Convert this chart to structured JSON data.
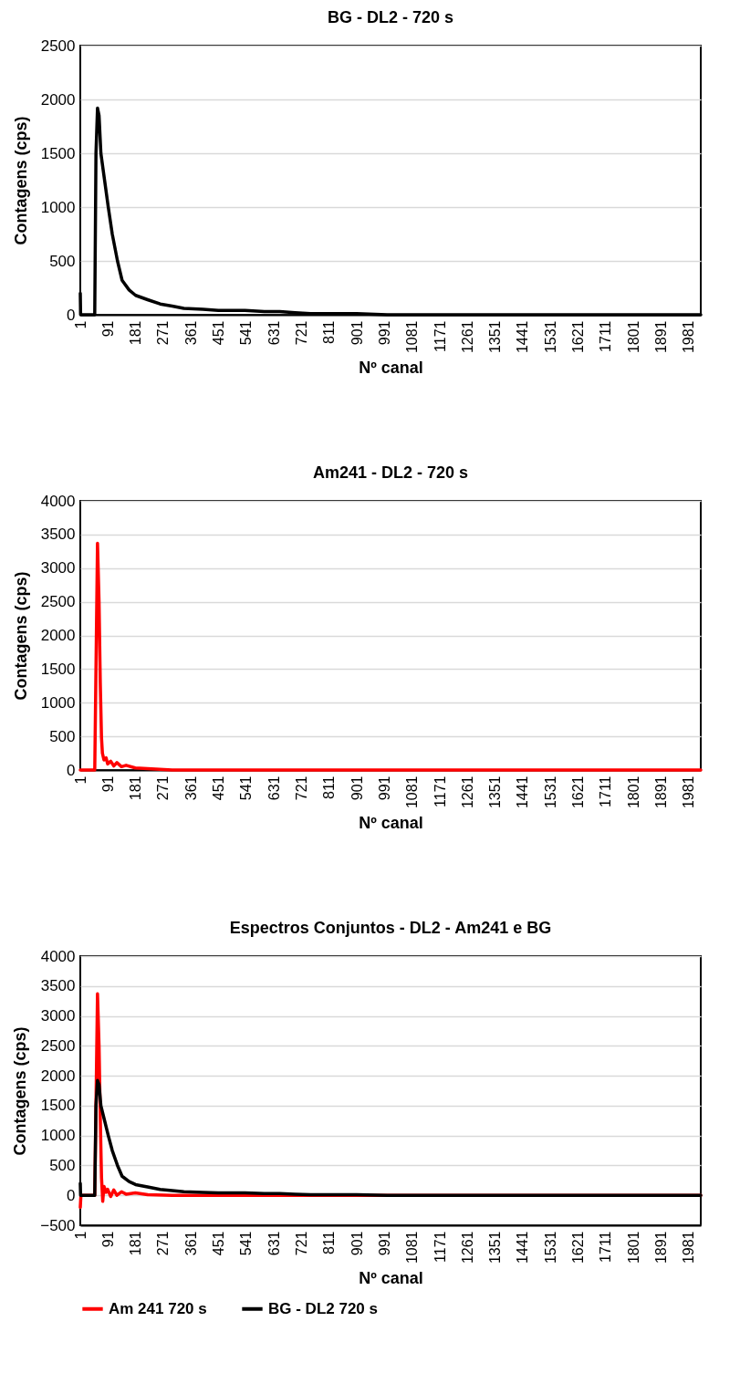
{
  "chart_data": [
    {
      "type": "line",
      "title": "BG - DL2 - 720 s",
      "xlabel": "Nº canal",
      "ylabel": "Contagens (cps)",
      "xlim": [
        1,
        2020
      ],
      "xticks": [
        1,
        91,
        181,
        271,
        361,
        451,
        541,
        631,
        721,
        811,
        901,
        991,
        1081,
        1171,
        1261,
        1351,
        1441,
        1531,
        1621,
        1711,
        1801,
        1891,
        1981
      ],
      "ylim": [
        0,
        2500
      ],
      "yticks": [
        0,
        500,
        1000,
        1500,
        2000,
        2500
      ],
      "grid": "y",
      "series": [
        {
          "color": "#000000",
          "x": [
            1,
            2,
            48,
            52,
            57,
            62,
            68,
            80,
            92,
            105,
            122,
            137,
            160,
            181,
            220,
            261,
            300,
            338,
            400,
            450,
            537,
            600,
            650,
            700,
            750,
            800,
            900,
            1000,
            1500,
            2020
          ],
          "values": [
            200,
            0,
            0,
            1500,
            1920,
            1850,
            1500,
            1250,
            1000,
            750,
            500,
            320,
            230,
            180,
            140,
            100,
            80,
            60,
            50,
            40,
            40,
            30,
            30,
            20,
            10,
            10,
            10,
            0,
            0,
            0
          ]
        }
      ]
    },
    {
      "type": "line",
      "title": "Am241 - DL2 - 720 s",
      "xlabel": "Nº canal",
      "ylabel": "Contagens (cps)",
      "xlim": [
        1,
        2020
      ],
      "xticks": [
        1,
        91,
        181,
        271,
        361,
        451,
        541,
        631,
        721,
        811,
        901,
        991,
        1081,
        1171,
        1261,
        1351,
        1441,
        1531,
        1621,
        1711,
        1801,
        1891,
        1981
      ],
      "ylim": [
        0,
        4000
      ],
      "yticks": [
        0,
        500,
        1000,
        1500,
        2000,
        2500,
        3000,
        3500,
        4000
      ],
      "grid": "y",
      "series": [
        {
          "color": "#ff0000",
          "x": [
            1,
            48,
            52,
            57,
            62,
            66,
            70,
            73,
            78,
            85,
            90,
            100,
            110,
            120,
            135,
            150,
            180,
            220,
            300,
            2020
          ],
          "values": [
            0,
            0,
            1500,
            3370,
            2500,
            1300,
            480,
            250,
            150,
            180,
            90,
            130,
            60,
            110,
            50,
            70,
            30,
            20,
            0,
            0
          ]
        }
      ]
    },
    {
      "type": "line",
      "title": "Espectros Conjuntos - DL2 -  Am241 e BG",
      "xlabel": "Nº canal",
      "ylabel": "Contagens (cps)",
      "xlim": [
        1,
        2020
      ],
      "xticks": [
        1,
        91,
        181,
        271,
        361,
        451,
        541,
        631,
        721,
        811,
        901,
        991,
        1081,
        1171,
        1261,
        1351,
        1441,
        1531,
        1621,
        1711,
        1801,
        1891,
        1981
      ],
      "ylim": [
        -500,
        4000
      ],
      "yticks": [
        -500,
        0,
        500,
        1000,
        1500,
        2000,
        2500,
        3000,
        3500,
        4000
      ],
      "grid": "y",
      "legend": "bottom",
      "series": [
        {
          "name": "Am 241 720 s",
          "color": "#ff0000",
          "x": [
            1,
            3,
            48,
            52,
            57,
            62,
            66,
            70,
            74,
            78,
            85,
            90,
            100,
            110,
            120,
            135,
            150,
            180,
            220,
            300,
            2020
          ],
          "values": [
            -200,
            0,
            0,
            1500,
            3370,
            2500,
            1300,
            300,
            -100,
            150,
            50,
            100,
            -20,
            90,
            0,
            60,
            20,
            40,
            10,
            0,
            0
          ]
        },
        {
          "name": "BG - DL2 720 s",
          "color": "#000000",
          "x": [
            1,
            2,
            48,
            52,
            57,
            62,
            68,
            80,
            92,
            105,
            122,
            137,
            160,
            181,
            220,
            261,
            300,
            338,
            400,
            450,
            537,
            600,
            650,
            700,
            750,
            800,
            900,
            1000,
            1500,
            2020
          ],
          "values": [
            200,
            0,
            0,
            1500,
            1920,
            1850,
            1500,
            1250,
            1000,
            750,
            500,
            320,
            230,
            180,
            140,
            100,
            80,
            60,
            50,
            40,
            40,
            30,
            30,
            20,
            10,
            10,
            10,
            0,
            0,
            0
          ]
        }
      ]
    }
  ]
}
